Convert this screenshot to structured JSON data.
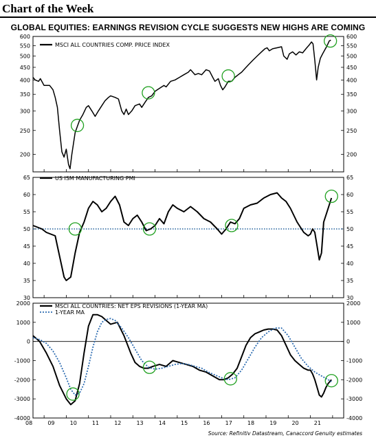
{
  "header": {
    "title": "Chart of the Week"
  },
  "main_title": "GLOBAL EQUITIES:  EARNINGS REVISION CYCLE SUGGESTS NEW HIGHS ARE COMING",
  "source": "Source: Refinitiv Datastream, Canaccord Genuity estimates",
  "chart_data": [
    {
      "type": "line",
      "scale": "log",
      "y_ticks": [
        200,
        250,
        300,
        350,
        400,
        450,
        500,
        550,
        600
      ],
      "ylim": [
        170,
        600
      ],
      "series": [
        {
          "name": "MSCI ALL COUNTRIES COMP. PRICE INDEX",
          "x": [
            2007.5,
            2007.6,
            2007.75,
            2007.83,
            2008.0,
            2008.25,
            2008.4,
            2008.5,
            2008.6,
            2008.7,
            2008.8,
            2008.9,
            2009.0,
            2009.1,
            2009.17,
            2009.25,
            2009.4,
            2009.5,
            2009.6,
            2009.75,
            2009.9,
            2010.0,
            2010.15,
            2010.3,
            2010.45,
            2010.6,
            2010.75,
            2010.9,
            2011.0,
            2011.2,
            2011.35,
            2011.5,
            2011.6,
            2011.7,
            2011.8,
            2011.95,
            2012.1,
            2012.3,
            2012.4,
            2012.55,
            2012.7,
            2012.85,
            2013.0,
            2013.2,
            2013.4,
            2013.5,
            2013.7,
            2013.9,
            2014.1,
            2014.3,
            2014.5,
            2014.6,
            2014.8,
            2014.95,
            2015.1,
            2015.3,
            2015.45,
            2015.6,
            2015.7,
            2015.85,
            2015.95,
            2016.05,
            2016.15,
            2016.3,
            2016.45,
            2016.6,
            2016.75,
            2016.9,
            2017.05,
            2017.2,
            2017.4,
            2017.6,
            2017.8,
            2017.95,
            2018.05,
            2018.15,
            2018.3,
            2018.5,
            2018.7,
            2018.8,
            2018.95,
            2019.05,
            2019.2,
            2019.35,
            2019.5,
            2019.65,
            2019.8,
            2019.95,
            2020.05,
            2020.12,
            2020.2,
            2020.28,
            2020.35,
            2020.45,
            2020.55,
            2020.65,
            2020.75,
            2020.85,
            2020.92
          ],
          "values": [
            410,
            400,
            395,
            405,
            380,
            380,
            365,
            340,
            310,
            250,
            205,
            195,
            210,
            182,
            175,
            200,
            245,
            260,
            275,
            290,
            310,
            315,
            300,
            285,
            300,
            315,
            330,
            340,
            345,
            340,
            335,
            300,
            290,
            305,
            290,
            300,
            315,
            320,
            310,
            325,
            340,
            345,
            360,
            370,
            380,
            375,
            395,
            400,
            410,
            420,
            430,
            440,
            420,
            425,
            420,
            440,
            435,
            410,
            395,
            405,
            380,
            365,
            375,
            395,
            395,
            410,
            420,
            430,
            445,
            460,
            480,
            500,
            520,
            535,
            540,
            525,
            535,
            540,
            545,
            500,
            485,
            510,
            520,
            505,
            520,
            515,
            535,
            555,
            570,
            560,
            480,
            400,
            450,
            490,
            510,
            530,
            550,
            575,
            580
          ]
        }
      ],
      "markers": [
        {
          "x": 2009.5,
          "y": 262
        },
        {
          "x": 2012.7,
          "y": 355
        },
        {
          "x": 2016.3,
          "y": 415
        },
        {
          "x": 2020.9,
          "y": 575
        }
      ]
    },
    {
      "type": "line",
      "y_ticks": [
        30,
        35,
        40,
        45,
        50,
        55,
        60,
        65
      ],
      "ylim": [
        30,
        65
      ],
      "reference_line": 50,
      "series": [
        {
          "name": "US ISM MANUFACTURING PMI",
          "x": [
            2007.5,
            2007.7,
            2007.9,
            2008.1,
            2008.3,
            2008.5,
            2008.6,
            2008.8,
            2008.9,
            2009.0,
            2009.2,
            2009.4,
            2009.6,
            2009.8,
            2010.0,
            2010.2,
            2010.4,
            2010.6,
            2010.8,
            2011.0,
            2011.2,
            2011.4,
            2011.6,
            2011.8,
            2012.0,
            2012.2,
            2012.4,
            2012.6,
            2012.8,
            2013.0,
            2013.2,
            2013.4,
            2013.6,
            2013.8,
            2014.0,
            2014.3,
            2014.6,
            2014.9,
            2015.2,
            2015.5,
            2015.8,
            2016.0,
            2016.2,
            2016.4,
            2016.6,
            2016.8,
            2017.0,
            2017.3,
            2017.6,
            2017.9,
            2018.2,
            2018.5,
            2018.7,
            2018.9,
            2019.1,
            2019.4,
            2019.7,
            2019.9,
            2020.0,
            2020.1,
            2020.2,
            2020.3,
            2020.4,
            2020.5,
            2020.6,
            2020.75,
            2020.85,
            2020.95
          ],
          "values": [
            51,
            50.5,
            50,
            49,
            48.5,
            48,
            45,
            39,
            36,
            35,
            36,
            43,
            49,
            52,
            56,
            58,
            57,
            55,
            56,
            58,
            59.5,
            57,
            52,
            51,
            53,
            54,
            52,
            49.5,
            50,
            51,
            53,
            51.5,
            55,
            57,
            56,
            55,
            56.5,
            55,
            53,
            52,
            50,
            48.5,
            50,
            52,
            51.5,
            53,
            56,
            57,
            57.5,
            59,
            60,
            60.5,
            59,
            58,
            56,
            52,
            49,
            48,
            48.5,
            50,
            49,
            45,
            41,
            43,
            52,
            55,
            57,
            59
          ]
        }
      ],
      "markers": [
        {
          "x": 2009.4,
          "y": 50
        },
        {
          "x": 2012.75,
          "y": 50
        },
        {
          "x": 2016.45,
          "y": 51
        },
        {
          "x": 2020.95,
          "y": 59.5
        }
      ]
    },
    {
      "type": "line",
      "y_ticks": [
        -4000,
        -3000,
        -2000,
        -1000,
        0,
        1000,
        2000
      ],
      "ylim": [
        -4000,
        2000
      ],
      "reference_line": 0,
      "series": [
        {
          "name": "MSCI ALL COUNTRIES: NET EPS REVISIONS (1-YEAR MA)",
          "x": [
            2007.5,
            2007.8,
            2008.1,
            2008.4,
            2008.7,
            2009.0,
            2009.2,
            2009.4,
            2009.6,
            2009.8,
            2010.0,
            2010.2,
            2010.4,
            2010.6,
            2010.8,
            2011.0,
            2011.3,
            2011.6,
            2011.9,
            2012.1,
            2012.3,
            2012.5,
            2012.7,
            2012.9,
            2013.2,
            2013.5,
            2013.8,
            2014.1,
            2014.4,
            2014.7,
            2015.0,
            2015.3,
            2015.6,
            2015.9,
            2016.1,
            2016.3,
            2016.5,
            2016.7,
            2016.9,
            2017.1,
            2017.3,
            2017.5,
            2017.7,
            2017.9,
            2018.1,
            2018.3,
            2018.5,
            2018.7,
            2018.9,
            2019.1,
            2019.3,
            2019.5,
            2019.7,
            2019.9,
            2020.0,
            2020.1,
            2020.2,
            2020.3,
            2020.4,
            2020.5,
            2020.6,
            2020.7,
            2020.8,
            2020.95
          ],
          "values": [
            300,
            0,
            -600,
            -1300,
            -2300,
            -3000,
            -3300,
            -3100,
            -2200,
            -600,
            800,
            1400,
            1400,
            1300,
            1100,
            900,
            1000,
            300,
            -600,
            -1100,
            -1300,
            -1400,
            -1400,
            -1300,
            -1200,
            -1300,
            -1000,
            -1100,
            -1200,
            -1300,
            -1500,
            -1600,
            -1800,
            -2000,
            -2000,
            -1900,
            -1700,
            -1400,
            -800,
            -200,
            200,
            400,
            500,
            600,
            650,
            650,
            600,
            300,
            -200,
            -700,
            -1000,
            -1200,
            -1400,
            -1500,
            -1500,
            -1700,
            -2000,
            -2400,
            -2800,
            -2900,
            -2700,
            -2400,
            -2200,
            -2000
          ]
        },
        {
          "name": "1-YEAR MA",
          "x": [
            2007.5,
            2007.8,
            2008.1,
            2008.4,
            2008.7,
            2009.0,
            2009.2,
            2009.4,
            2009.6,
            2009.8,
            2010.0,
            2010.2,
            2010.4,
            2010.6,
            2010.8,
            2011.0,
            2011.2,
            2011.5,
            2011.8,
            2012.1,
            2012.4,
            2012.7,
            2013.0,
            2013.3,
            2013.6,
            2013.9,
            2014.2,
            2014.5,
            2014.8,
            2015.1,
            2015.4,
            2015.7,
            2016.0,
            2016.3,
            2016.6,
            2016.9,
            2017.2,
            2017.5,
            2017.8,
            2018.1,
            2018.4,
            2018.7,
            2019.0,
            2019.3,
            2019.6,
            2019.9,
            2020.2,
            2020.5,
            2020.8,
            2020.95
          ],
          "values": [
            200,
            100,
            -100,
            -500,
            -1100,
            -1900,
            -2500,
            -2800,
            -2700,
            -2200,
            -1300,
            -300,
            500,
            1000,
            1150,
            1200,
            1100,
            700,
            200,
            -400,
            -1000,
            -1350,
            -1450,
            -1400,
            -1300,
            -1200,
            -1150,
            -1200,
            -1300,
            -1400,
            -1600,
            -1750,
            -1900,
            -2000,
            -1900,
            -1500,
            -900,
            -300,
            200,
            500,
            700,
            700,
            300,
            -300,
            -900,
            -1300,
            -1600,
            -1800,
            -2000,
            -2100
          ]
        }
      ],
      "markers": [
        {
          "x": 2009.3,
          "y": -2750
        },
        {
          "x": 2012.75,
          "y": -1350
        },
        {
          "x": 2016.4,
          "y": -1950
        },
        {
          "x": 2020.95,
          "y": -2050
        }
      ]
    }
  ],
  "x_axis": {
    "xlim": [
      2007.5,
      2021.5
    ],
    "tick_labels": [
      "08",
      "09",
      "10",
      "11",
      "12",
      "13",
      "14",
      "15",
      "16",
      "17",
      "18",
      "19",
      "20",
      "21"
    ],
    "tick_values": [
      2008,
      2009,
      2010,
      2011,
      2012,
      2013,
      2014,
      2015,
      2016,
      2017,
      2018,
      2019,
      2020,
      2021
    ]
  },
  "colors": {
    "line": "#000000",
    "ma_line": "#2a6ab0",
    "marker": "#1fa01f",
    "reference": "#1f5f9a"
  }
}
